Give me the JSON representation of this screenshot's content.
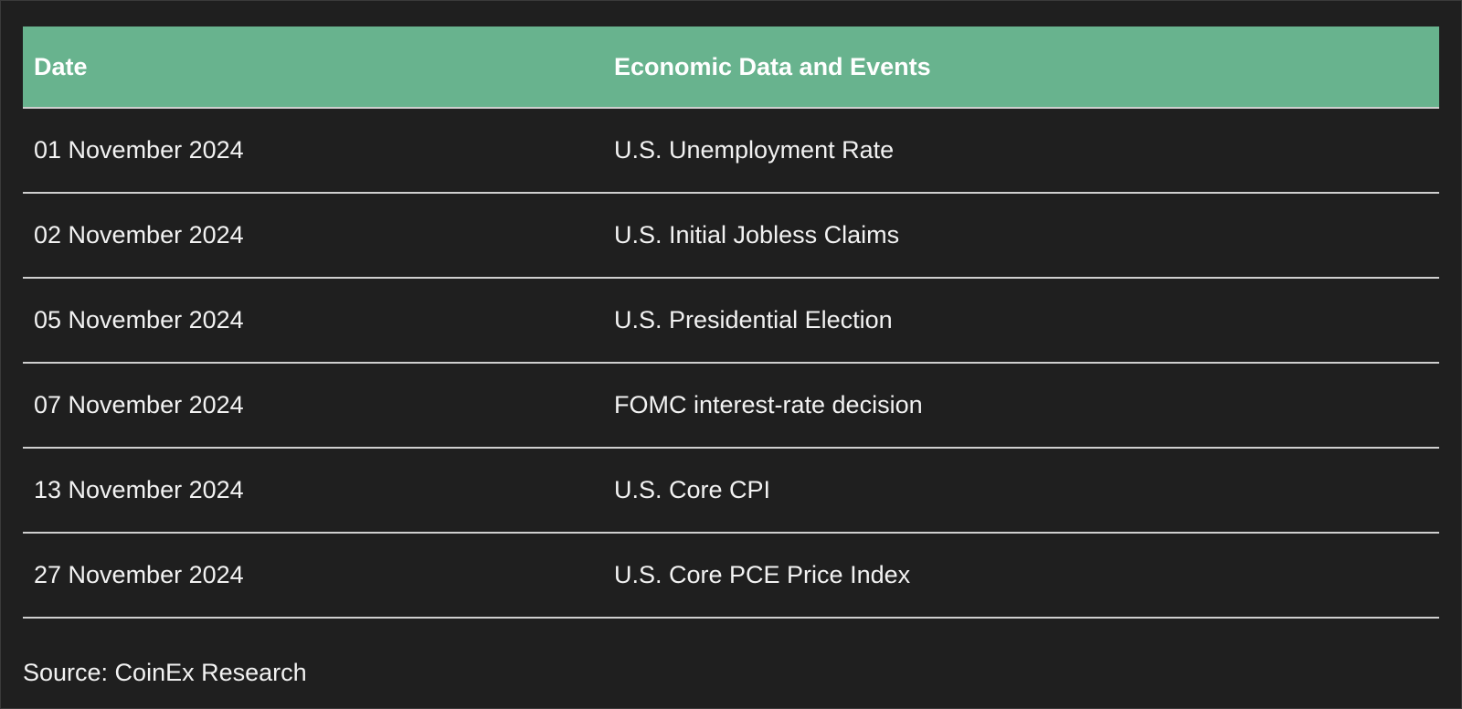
{
  "table": {
    "headers": [
      "Date",
      "Economic Data and Events"
    ],
    "rows": [
      [
        "01 November 2024",
        "U.S. Unemployment Rate"
      ],
      [
        "02 November 2024",
        "U.S. Initial Jobless Claims"
      ],
      [
        "05 November 2024",
        "U.S. Presidential Election"
      ],
      [
        "07 November 2024",
        "FOMC interest-rate decision"
      ],
      [
        "13 November 2024",
        "U.S. Core CPI"
      ],
      [
        "27 November 2024",
        "U.S. Core PCE Price Index"
      ]
    ]
  },
  "source": "Source: CoinEx Research",
  "colors": {
    "background": "#1f1f1f",
    "header_bg": "#68b38e",
    "header_text": "#ffffff",
    "body_text": "#f2f2f2",
    "row_divider": "#cfcfcf"
  }
}
